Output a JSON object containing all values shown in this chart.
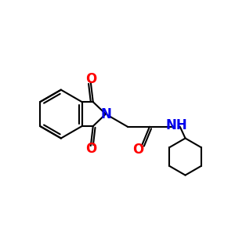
{
  "bg_color": "#ffffff",
  "bond_color": "#000000",
  "N_color": "#0000ee",
  "O_color": "#ff0000",
  "lw": 1.5,
  "figsize": [
    3.0,
    3.0
  ],
  "dpi": 100,
  "xlim": [
    0,
    10
  ],
  "ylim": [
    0,
    10
  ]
}
